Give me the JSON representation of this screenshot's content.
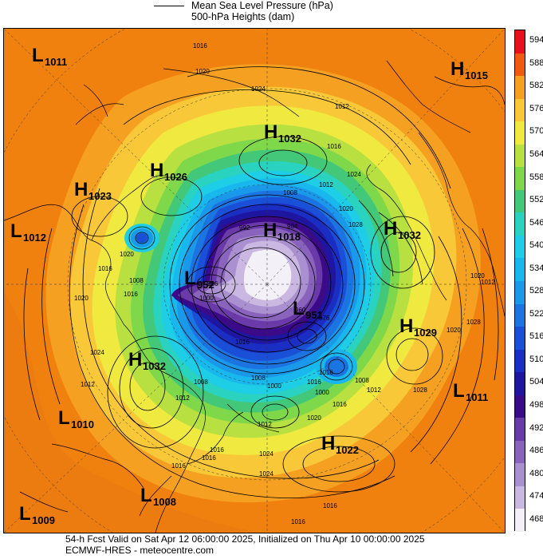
{
  "legend": {
    "line1": "Mean Sea Level Pressure (hPa)",
    "line2": "500-hPa Heights (dam)"
  },
  "footer": {
    "line1": "54-h Fcst Valid on Sat Apr 12 06:00:00 2025, Initialized on Thu Apr 10 00:00:00 2025",
    "line2": "ECMWF-HRES - meteocentre.com"
  },
  "colorbar": {
    "labels": [
      "594",
      "588",
      "582",
      "576",
      "570",
      "564",
      "558",
      "552",
      "546",
      "540",
      "534",
      "528",
      "522",
      "516",
      "510",
      "504",
      "498",
      "492",
      "486",
      "480",
      "474",
      "468"
    ],
    "colors": [
      "#e8101a",
      "#f05a10",
      "#f5a020",
      "#f8c838",
      "#f0ea40",
      "#b8e040",
      "#7ed84a",
      "#42c878",
      "#2ad2c0",
      "#1ecde6",
      "#18b8ee",
      "#1a98ea",
      "#1c74e2",
      "#1a4fd8",
      "#1a2ec4",
      "#1e16a0",
      "#3a0a88",
      "#6a3aa8",
      "#8a64bc",
      "#aa90d0",
      "#cab8e2",
      "#f4f0f8"
    ]
  },
  "pressure_centers": [
    {
      "type": "L",
      "value": "1011"
    },
    {
      "type": "H",
      "value": "1015"
    },
    {
      "type": "H",
      "value": "1032"
    },
    {
      "type": "H",
      "value": "1026"
    },
    {
      "type": "H",
      "value": "1023"
    },
    {
      "type": "L",
      "value": "1012"
    },
    {
      "type": "H",
      "value": "1018"
    },
    {
      "type": "H",
      "value": "1032"
    },
    {
      "type": "L",
      "value": "952"
    },
    {
      "type": "L",
      "value": "951"
    },
    {
      "type": "H",
      "value": "1029"
    },
    {
      "type": "H",
      "value": "1032"
    },
    {
      "type": "L",
      "value": "1011"
    },
    {
      "type": "L",
      "value": "1010"
    },
    {
      "type": "H",
      "value": "1022"
    },
    {
      "type": "L",
      "value": "1008"
    },
    {
      "type": "L",
      "value": "1009"
    }
  ],
  "isobar_labels": [
    "1016",
    "1020",
    "1024",
    "1012",
    "1016",
    "1024",
    "1008",
    "1012",
    "1020",
    "1028",
    "1016",
    "1020",
    "1024",
    "1020",
    "1012",
    "1016",
    "1008",
    "1012",
    "1016",
    "1024",
    "1016",
    "1020",
    "1016",
    "1028",
    "1012",
    "1016",
    "1000",
    "1008",
    "1012",
    "1016",
    "1024",
    "1016",
    "1020",
    "1028",
    "1012",
    "1016",
    "1000",
    "1008",
    "984",
    "992",
    "996",
    "1000",
    "976",
    "960",
    "1008",
    "1016",
    "1020",
    "1016"
  ]
}
